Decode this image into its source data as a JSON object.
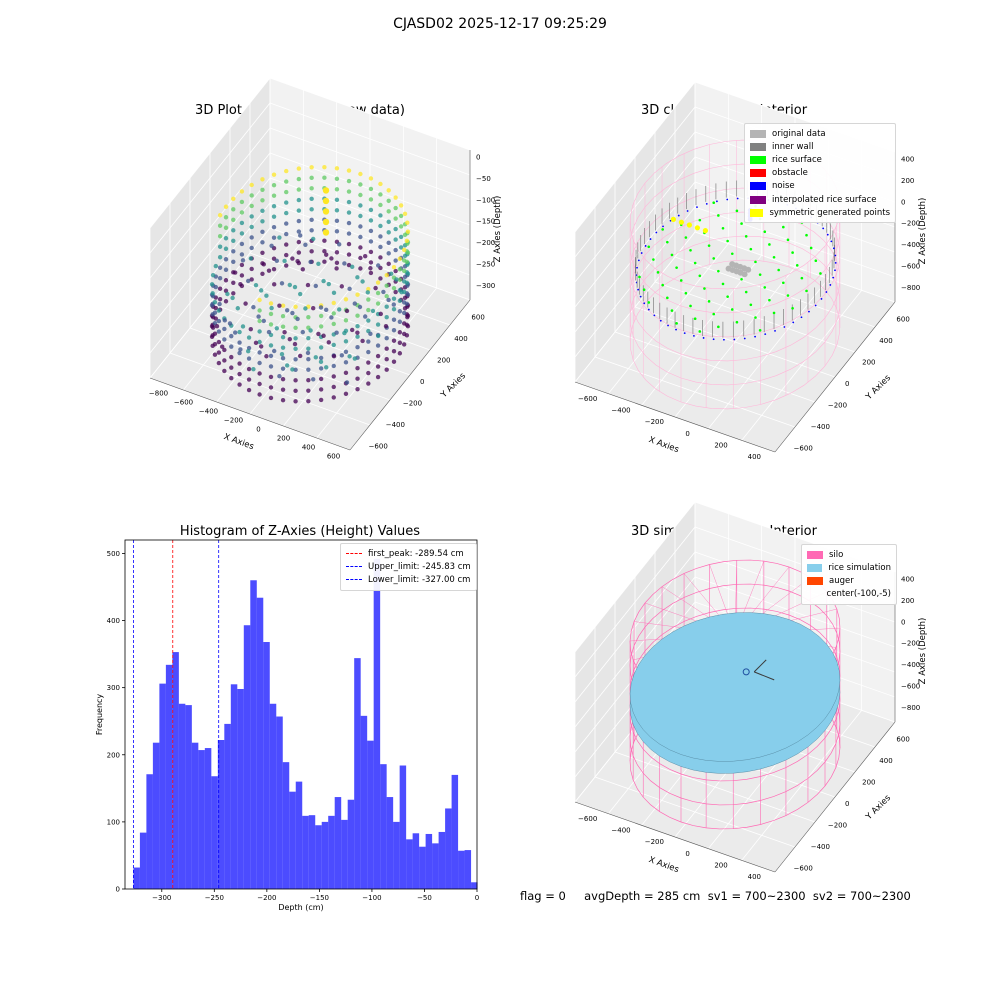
{
  "figure": {
    "suptitle": "CJASD02 2025-12-17 09:25:29",
    "footer": "flag = 0     avgDepth = 285 cm  sv1 = 700~2300  sv2 = 700~2300"
  },
  "panels": {
    "raw": {
      "title": "3D Plot of Silo Interior(row data)",
      "x_label": "X Axies",
      "y_label": "Y Axies",
      "z_label": "Z Axies (Depth)",
      "x_ticks": [
        "−800",
        "−600",
        "−400",
        "−200",
        "0",
        "200",
        "400",
        "600"
      ],
      "y_ticks": [
        "600",
        "400",
        "200",
        "0",
        "−200",
        "−400",
        "−600"
      ],
      "z_ticks": [
        "0",
        "−50",
        "−100",
        "−150",
        "−200",
        "−250",
        "−300"
      ]
    },
    "classify": {
      "title": "3D classify of Silo Interior",
      "x_label": "X Axies",
      "y_label": "Y Axies",
      "z_label": "Z Axies (Depth)",
      "x_ticks": [
        "−600",
        "−400",
        "−200",
        "0",
        "200",
        "400"
      ],
      "y_ticks": [
        "600",
        "400",
        "200",
        "0",
        "−200",
        "−400",
        "−600"
      ],
      "z_ticks": [
        "400",
        "200",
        "0",
        "−200",
        "−400",
        "−600",
        "−800"
      ],
      "legend": [
        {
          "label": "original data",
          "color": "#b4b4b4"
        },
        {
          "label": "inner wall",
          "color": "#808080"
        },
        {
          "label": "rice surface",
          "color": "#00ff00"
        },
        {
          "label": "obstacle",
          "color": "#ff0000"
        },
        {
          "label": "noise",
          "color": "#0000ff"
        },
        {
          "label": "interpolated rice surface",
          "color": "#800080"
        },
        {
          "label": "symmetric generated points",
          "color": "#ffff00"
        }
      ]
    },
    "simulation": {
      "title": "3D simulation of Silo Interior",
      "x_label": "X Axies",
      "y_label": "Y Axies",
      "z_label": "Z Axies (Depth)",
      "x_ticks": [
        "−600",
        "−400",
        "−200",
        "0",
        "200",
        "400"
      ],
      "y_ticks": [
        "600",
        "400",
        "200",
        "0",
        "−200",
        "−400",
        "−600"
      ],
      "z_ticks": [
        "400",
        "200",
        "0",
        "−200",
        "−400",
        "−600",
        "−800"
      ],
      "legend": [
        {
          "label": "silo",
          "color": "#ff69b4"
        },
        {
          "label": "rice simulation",
          "color": "#87ceeb"
        },
        {
          "label": "auger",
          "color": "#ff4500"
        },
        {
          "label": "center(-100,-5)",
          "color": ""
        }
      ]
    }
  },
  "chart_data": {
    "type": "bar",
    "title": "Histogram of Z-Axies (Height) Values",
    "xlabel": "Depth (cm)",
    "ylabel": "Frequency",
    "xlim": [
      -335,
      0
    ],
    "ylim": [
      0,
      520
    ],
    "x_ticks": [
      -300,
      -250,
      -200,
      -150,
      -100,
      -50,
      0
    ],
    "y_ticks": [
      0,
      100,
      200,
      300,
      400,
      500
    ],
    "bin_start": -327,
    "bin_width": 6.18,
    "color": "#0000ff",
    "values": [
      32,
      84,
      171,
      218,
      306,
      334,
      353,
      276,
      274,
      218,
      207,
      210,
      168,
      222,
      246,
      305,
      298,
      393,
      460,
      434,
      368,
      276,
      257,
      189,
      145,
      160,
      109,
      110,
      95,
      100,
      109,
      137,
      103,
      133,
      344,
      258,
      221,
      492,
      186,
      137,
      100,
      184,
      74,
      83,
      63,
      82,
      68,
      85,
      120,
      170,
      57,
      58,
      10
    ],
    "vlines": [
      {
        "label": "first_peak: -289.54 cm",
        "x": -289.54,
        "color": "#ff0000"
      },
      {
        "label": "Upper_limit: -245.83 cm",
        "x": -245.83,
        "color": "#0000ff"
      },
      {
        "label": "Lower_limit: -327.00 cm",
        "x": -327.0,
        "color": "#0000ff"
      }
    ]
  }
}
